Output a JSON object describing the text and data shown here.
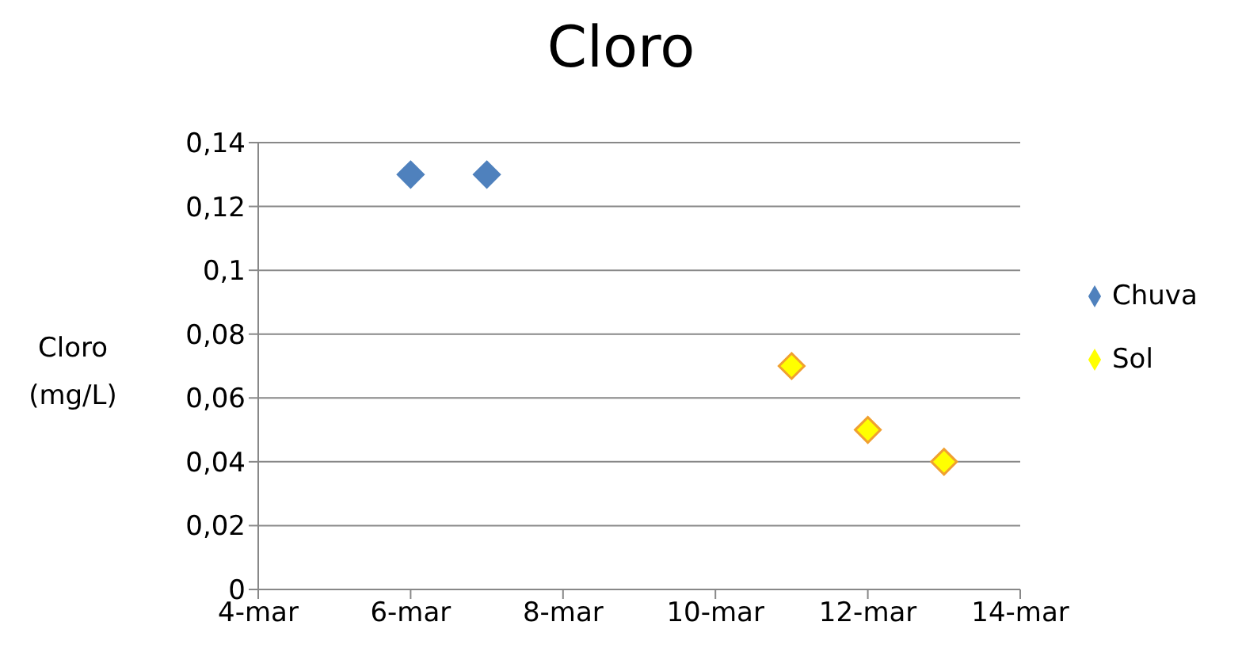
{
  "chart_data": {
    "type": "scatter",
    "title": "Cloro",
    "ylabel": "Cloro (mg/L)",
    "marker": "diamond",
    "grid": "y",
    "legend": "right",
    "xlim": [
      "--03-04",
      "--03-14"
    ],
    "xticks": [
      {
        "value": "--03-04",
        "label": "4-mar"
      },
      {
        "value": "--03-06",
        "label": "6-mar"
      },
      {
        "value": "--03-08",
        "label": "8-mar"
      },
      {
        "value": "--03-10",
        "label": "10-mar"
      },
      {
        "value": "--03-12",
        "label": "12-mar"
      },
      {
        "value": "--03-14",
        "label": "14-mar"
      }
    ],
    "ylim": [
      0,
      0.14
    ],
    "yticks": [
      0,
      {
        "value": 0.02,
        "label": "0,02"
      },
      {
        "value": 0.04,
        "label": "0,04"
      },
      {
        "value": 0.06,
        "label": "0,06"
      },
      {
        "value": 0.08,
        "label": "0,08"
      },
      {
        "value": 0.1,
        "label": "0,1"
      },
      {
        "value": 0.12,
        "label": "0,12"
      },
      {
        "value": 0.14,
        "label": "0,14"
      }
    ],
    "series": [
      {
        "name": "Sol",
        "color": "#ffff00",
        "x": [
          "--03-11",
          "--03-12",
          "--03-13"
        ],
        "values": [
          0.07,
          0.05,
          0.04
        ]
      },
      {
        "name": "Chuva",
        "color": "#4f81bd",
        "x": [
          "--03-06",
          "--03-07"
        ],
        "values": [
          0.13,
          0.13
        ]
      }
    ]
  }
}
